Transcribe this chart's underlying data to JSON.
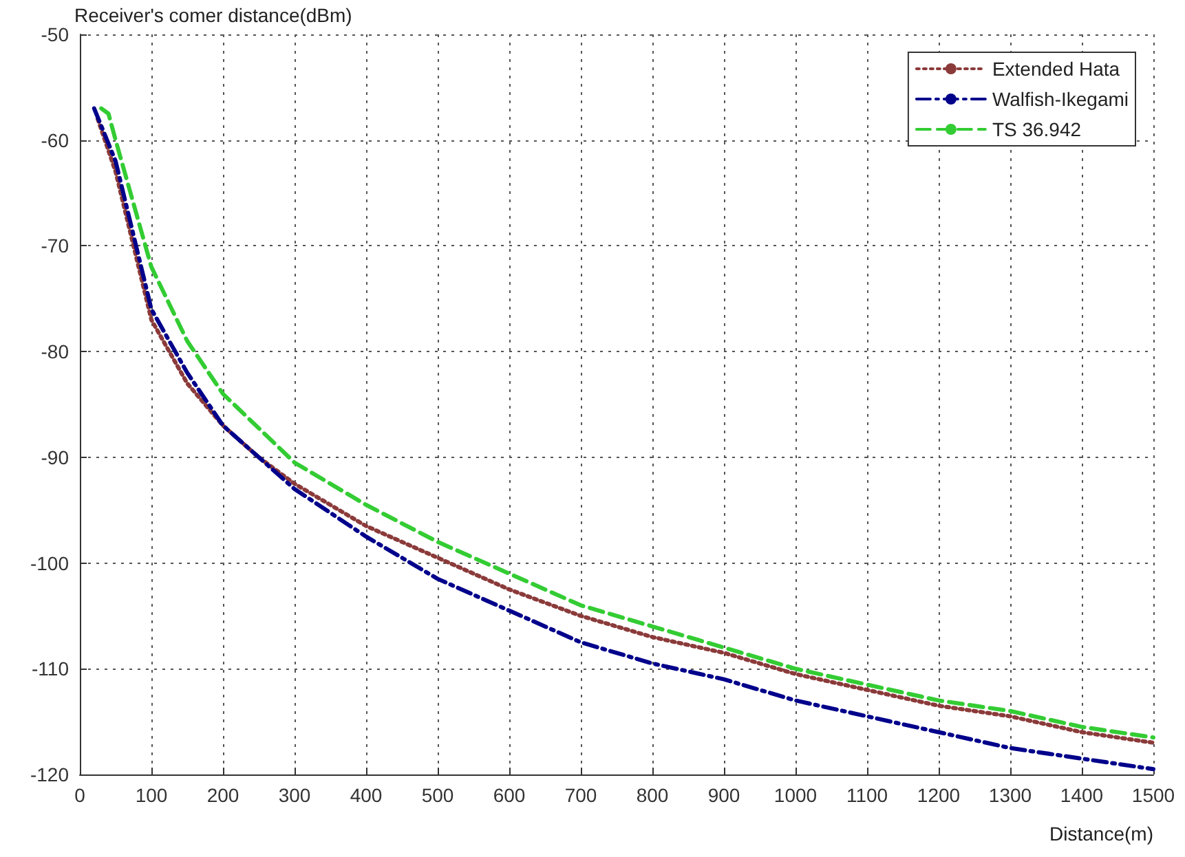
{
  "chart_data": {
    "type": "line",
    "ylabel": "Receiver's comer distance(dBm)",
    "xlabel": "Distance(m)",
    "xlim": [
      0,
      1500
    ],
    "xticks": [
      0,
      100,
      200,
      300,
      400,
      500,
      600,
      700,
      800,
      900,
      1000,
      1100,
      1200,
      1300,
      1400,
      1500
    ],
    "ylim": [
      -120,
      -50
    ],
    "yticks": [
      -120,
      -110,
      -100,
      -90,
      -80,
      -70,
      -60,
      -50
    ],
    "grid": true,
    "legend": "top right",
    "marker": "none",
    "series": [
      {
        "name": "Extended Hata",
        "color": "#8b3a3a",
        "line_style": "dotted",
        "x": [
          25,
          50,
          100,
          150,
          200,
          250,
          300,
          400,
          500,
          600,
          700,
          800,
          900,
          1000,
          1100,
          1200,
          1300,
          1400,
          1500
        ],
        "values": [
          -58,
          -63,
          -77,
          -83,
          -87,
          -90,
          -92.5,
          -96.5,
          -99.5,
          -102.5,
          -105,
          -107,
          -108.5,
          -110.5,
          -112,
          -113.5,
          -114.5,
          -116,
          -117
        ]
      },
      {
        "name": "Walfish-Ikegami",
        "color": "#00008b",
        "line_style": "dashdot",
        "x": [
          20,
          50,
          100,
          150,
          200,
          250,
          300,
          400,
          500,
          600,
          700,
          800,
          900,
          1000,
          1100,
          1200,
          1300,
          1400,
          1500
        ],
        "values": [
          -57,
          -62,
          -76,
          -82,
          -87,
          -90,
          -93,
          -97.5,
          -101.5,
          -104.5,
          -107.5,
          -109.5,
          -111,
          -113,
          -114.5,
          -116,
          -117.5,
          -118.5,
          -119.5
        ]
      },
      {
        "name": "TS 36.942",
        "color": "#33cc33",
        "line_style": "dashed",
        "x": [
          30,
          40,
          50,
          100,
          150,
          200,
          300,
          400,
          500,
          600,
          700,
          800,
          900,
          1000,
          1100,
          1200,
          1300,
          1400,
          1500
        ],
        "values": [
          -57,
          -57.5,
          -60,
          -72,
          -79,
          -84,
          -90.5,
          -94.5,
          -98,
          -101,
          -104,
          -106,
          -108,
          -110,
          -111.5,
          -113,
          -114,
          -115.5,
          -116.5
        ]
      }
    ]
  }
}
